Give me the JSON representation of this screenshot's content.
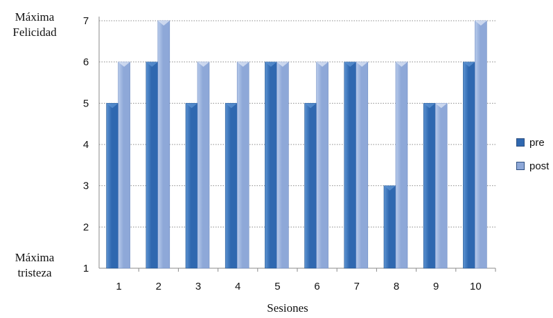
{
  "labels": {
    "top": "Máxima Felicidad",
    "bottom": "Máxima tristeza"
  },
  "colors": {
    "pre": "#2f68b0",
    "pre_light": "#5d93d1",
    "post": "#8ea8d8",
    "post_light": "#b8cbeb",
    "grid": "#8a8a8a",
    "axis": "#8a8a8a"
  },
  "chart_data": {
    "type": "bar",
    "categories": [
      "1",
      "2",
      "3",
      "4",
      "5",
      "6",
      "7",
      "8",
      "9",
      "10"
    ],
    "series": [
      {
        "name": "pre",
        "values": [
          5,
          6,
          5,
          5,
          6,
          5,
          6,
          3,
          5,
          6
        ]
      },
      {
        "name": "post",
        "values": [
          6,
          7,
          6,
          6,
          6,
          6,
          6,
          6,
          5,
          7
        ]
      }
    ],
    "title": "",
    "xlabel": "Sesiones",
    "ylabel": "",
    "ylim": [
      1,
      7
    ],
    "yticks": [
      "1",
      "2",
      "3",
      "4",
      "5",
      "6",
      "7"
    ],
    "grid": true,
    "legend_position": "right"
  }
}
